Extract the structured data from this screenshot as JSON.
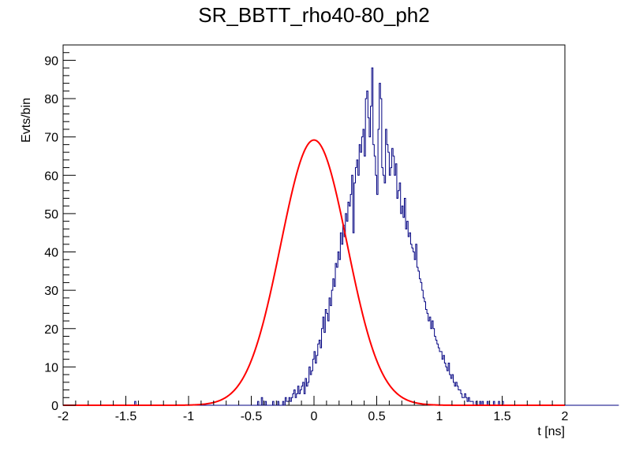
{
  "chart_data": {
    "type": "histogram",
    "title": "SR_BBTT_rho40-80_ph2",
    "xlabel": "t [ns]",
    "ylabel": "Evts/bin",
    "xlim": [
      -2,
      2
    ],
    "ylim": [
      0,
      94
    ],
    "bin_width": 0.01,
    "x_ticks": [
      "-2",
      "-1.5",
      "-1",
      "-0.5",
      "0",
      "0.5",
      "1",
      "1.5",
      "2"
    ],
    "y_ticks": [
      "0",
      "10",
      "20",
      "30",
      "40",
      "50",
      "60",
      "70",
      "80",
      "90"
    ],
    "grid": false,
    "legend": "none",
    "series": [
      {
        "kind": "histogram",
        "color": "#000080",
        "bins_start": -1.5,
        "values": [
          0,
          0,
          0,
          0,
          0,
          0,
          0,
          1,
          0,
          0,
          0,
          0,
          0,
          0,
          0,
          0,
          0,
          0,
          0,
          0,
          0,
          0,
          0,
          0,
          0,
          0,
          0,
          0,
          0,
          0,
          0,
          0,
          0,
          0,
          0,
          0,
          0,
          0,
          0,
          0,
          0,
          0,
          0,
          0,
          0,
          0,
          0,
          0,
          0,
          0,
          0,
          0,
          0,
          0,
          0,
          0,
          0,
          0,
          0,
          0,
          0,
          0,
          0,
          0,
          0,
          0,
          0,
          0,
          0,
          0,
          0,
          0,
          0,
          0,
          0,
          0,
          0,
          0,
          0,
          0,
          0,
          0,
          0,
          0,
          0,
          0,
          0,
          0,
          0,
          0,
          0,
          0,
          0,
          0,
          0,
          0,
          0,
          0,
          0,
          0,
          0,
          0,
          0,
          0,
          0,
          1,
          0,
          0,
          2,
          0,
          0,
          1,
          0,
          0,
          0,
          0,
          0,
          1,
          0,
          0,
          0,
          1,
          0,
          0,
          0,
          1,
          0,
          2,
          1,
          1,
          2,
          1,
          2,
          3,
          4,
          2,
          3,
          5,
          3,
          4,
          5,
          6,
          3,
          7,
          5,
          6,
          10,
          8,
          9,
          12,
          14,
          11,
          13,
          16,
          17,
          15,
          20,
          23,
          19,
          25,
          24,
          22,
          28,
          26,
          30,
          33,
          31,
          37,
          36,
          40,
          38,
          45,
          42,
          47,
          44,
          50,
          48,
          53,
          52,
          55,
          60,
          45,
          58,
          62,
          64,
          60,
          68,
          66,
          70,
          72,
          65,
          80,
          82,
          75,
          70,
          78,
          88,
          68,
          65,
          60,
          55,
          72,
          84,
          80,
          62,
          60,
          58,
          72,
          68,
          66,
          60,
          62,
          67,
          65,
          60,
          63,
          54,
          56,
          58,
          50,
          52,
          49,
          54,
          46,
          48,
          44,
          45,
          42,
          41,
          40,
          38,
          42,
          36,
          35,
          33,
          32,
          30,
          28,
          27,
          25,
          24,
          22,
          23,
          20,
          22,
          20,
          18,
          17,
          16,
          15,
          14,
          14,
          12,
          13,
          11,
          10,
          9,
          11,
          8,
          7,
          8,
          6,
          5,
          6,
          5,
          4,
          4,
          3,
          2,
          2,
          3,
          2,
          1,
          2,
          1,
          1,
          1,
          0,
          0,
          1,
          0,
          0,
          1,
          0,
          1,
          0,
          0,
          0,
          1,
          0,
          0,
          0,
          0,
          1,
          0,
          0,
          0,
          1,
          0,
          0,
          1,
          0,
          0,
          0,
          0,
          0,
          0,
          0,
          0,
          0,
          0,
          0,
          0,
          0,
          0,
          0,
          0,
          0,
          0,
          0,
          0,
          0,
          0,
          0,
          0,
          0,
          0,
          0,
          0,
          0,
          0,
          0,
          0,
          0,
          0,
          0,
          0,
          0,
          0,
          0,
          0,
          0,
          0,
          0,
          0,
          0,
          0,
          0,
          0,
          0,
          0,
          0,
          0,
          0,
          0,
          0,
          0,
          0,
          0,
          0,
          0,
          0,
          0,
          0,
          0,
          0,
          0,
          0,
          0,
          0,
          0,
          0,
          0,
          0,
          0,
          0,
          0,
          0,
          0,
          0,
          0,
          0,
          0,
          0,
          0,
          0,
          0,
          0,
          0,
          0,
          0,
          0,
          0
        ]
      },
      {
        "kind": "gaussian-fit",
        "color": "#ff0000",
        "amplitude": 69.2,
        "mean": 0.0,
        "sigma": 0.265
      }
    ]
  }
}
